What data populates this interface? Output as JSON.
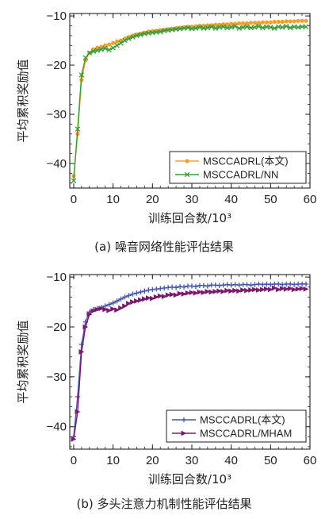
{
  "chart_data": [
    {
      "id": "a",
      "type": "line",
      "caption": "(a)  噪音网络性能评估结果",
      "xlabel": "训练回合数/10³",
      "ylabel": "平均累积奖励值",
      "xlim": [
        -1,
        60
      ],
      "ylim": [
        -45,
        -9.5
      ],
      "xticks": [
        0,
        10,
        20,
        30,
        40,
        50,
        60
      ],
      "yticks": [
        -40,
        -30,
        -20,
        -10
      ],
      "legend_position": "bottom-right",
      "series": [
        {
          "name": "MSCCADRL(本文)",
          "color": "#f4a12c",
          "marker": "dot",
          "x": [
            0,
            1,
            2,
            3,
            4,
            5,
            6,
            7,
            8,
            9,
            10,
            11,
            12,
            13,
            14,
            15,
            16,
            17,
            18,
            19,
            20,
            21,
            22,
            23,
            24,
            25,
            26,
            27,
            28,
            29,
            30,
            31,
            32,
            33,
            34,
            35,
            36,
            37,
            38,
            39,
            40,
            41,
            42,
            43,
            44,
            45,
            46,
            47,
            48,
            49,
            50,
            51,
            52,
            53,
            54,
            55,
            56,
            57,
            58,
            59
          ],
          "y": [
            -42.5,
            -34,
            -23,
            -19,
            -17.5,
            -16.8,
            -16.5,
            -16.3,
            -16,
            -15.8,
            -15.5,
            -15.2,
            -15,
            -14.6,
            -14.3,
            -14,
            -13.8,
            -13.6,
            -13.4,
            -13.2,
            -13.1,
            -13,
            -12.9,
            -12.8,
            -12.7,
            -12.6,
            -12.5,
            -12.4,
            -12.3,
            -12.2,
            -12.2,
            -12.1,
            -12,
            -12,
            -11.9,
            -11.9,
            -11.8,
            -11.8,
            -11.7,
            -11.7,
            -11.6,
            -11.6,
            -11.5,
            -11.5,
            -11.5,
            -11.4,
            -11.4,
            -11.4,
            -11.3,
            -11.3,
            -11.3,
            -11.2,
            -11.2,
            -11.2,
            -11.1,
            -11.1,
            -11.1,
            -11,
            -11,
            -11
          ]
        },
        {
          "name": "MSCCADRL/NN",
          "color": "#3a9a3a",
          "marker": "x",
          "x": [
            0,
            1,
            2,
            3,
            4,
            5,
            6,
            7,
            8,
            9,
            10,
            11,
            12,
            13,
            14,
            15,
            16,
            17,
            18,
            19,
            20,
            21,
            22,
            23,
            24,
            25,
            26,
            27,
            28,
            29,
            30,
            31,
            32,
            33,
            34,
            35,
            36,
            37,
            38,
            39,
            40,
            41,
            42,
            43,
            44,
            45,
            46,
            47,
            48,
            49,
            50,
            51,
            52,
            53,
            54,
            55,
            56,
            57,
            58,
            59
          ],
          "y": [
            -43.5,
            -33,
            -22,
            -18.5,
            -17.5,
            -17.2,
            -17,
            -16.8,
            -16.6,
            -16.9,
            -16.5,
            -16,
            -15.5,
            -15,
            -14.6,
            -14.3,
            -14,
            -13.8,
            -13.6,
            -13.5,
            -13.4,
            -13.3,
            -13.2,
            -13,
            -12.9,
            -12.8,
            -12.7,
            -12.6,
            -12.5,
            -12.4,
            -12.6,
            -12.5,
            -12.3,
            -12.5,
            -12.4,
            -12.2,
            -12.5,
            -12.3,
            -12.2,
            -12.4,
            -12.3,
            -12.1,
            -12.5,
            -12.3,
            -12.2,
            -12.4,
            -12.3,
            -12.1,
            -12.4,
            -12.2,
            -12.3,
            -12.5,
            -12.2,
            -12.3,
            -12.1,
            -12.4,
            -12.2,
            -12.3,
            -12.2,
            -12.2
          ]
        }
      ]
    },
    {
      "id": "b",
      "type": "line",
      "caption": "(b)  多头注意力机制性能评估结果",
      "xlabel": "训练回合数/10³",
      "ylabel": "平均累积奖励值",
      "xlim": [
        -1,
        60
      ],
      "ylim": [
        -44.5,
        -9.5
      ],
      "xticks": [
        0,
        10,
        20,
        30,
        40,
        50,
        60
      ],
      "yticks": [
        -40,
        -30,
        -20,
        -10
      ],
      "legend_position": "bottom-right",
      "series": [
        {
          "name": "MSCCADRL(本文)",
          "color": "#4557a8",
          "marker": "plus",
          "x": [
            0,
            1,
            2,
            3,
            4,
            5,
            6,
            7,
            8,
            9,
            10,
            11,
            12,
            13,
            14,
            15,
            16,
            17,
            18,
            19,
            20,
            21,
            22,
            23,
            24,
            25,
            26,
            27,
            28,
            29,
            30,
            31,
            32,
            33,
            34,
            35,
            36,
            37,
            38,
            39,
            40,
            41,
            42,
            43,
            44,
            45,
            46,
            47,
            48,
            49,
            50,
            51,
            52,
            53,
            54,
            55,
            56,
            57,
            58,
            59
          ],
          "y": [
            -42,
            -34,
            -23.5,
            -19,
            -17,
            -16.5,
            -16.3,
            -16.1,
            -15.8,
            -15.5,
            -15.2,
            -14.8,
            -14.4,
            -14,
            -13.7,
            -13.4,
            -13.2,
            -13,
            -12.8,
            -12.6,
            -12.5,
            -12.4,
            -12.3,
            -12.2,
            -12.1,
            -12,
            -12.1,
            -11.9,
            -12,
            -11.8,
            -11.8,
            -11.9,
            -11.7,
            -11.7,
            -11.8,
            -11.6,
            -11.6,
            -11.7,
            -11.6,
            -11.5,
            -11.6,
            -11.5,
            -11.6,
            -11.5,
            -11.5,
            -11.6,
            -11.5,
            -11.4,
            -11.5,
            -11.4,
            -11.5,
            -11.4,
            -11.4,
            -11.5,
            -11.4,
            -11.4,
            -11.5,
            -11.4,
            -11.4,
            -11.4
          ]
        },
        {
          "name": "MSCCADRL/MHAM",
          "color": "#7a1a6e",
          "marker": "triangle",
          "x": [
            0,
            1,
            2,
            3,
            4,
            5,
            6,
            7,
            8,
            9,
            10,
            11,
            12,
            13,
            14,
            15,
            16,
            17,
            18,
            19,
            20,
            21,
            22,
            23,
            24,
            25,
            26,
            27,
            28,
            29,
            30,
            31,
            32,
            33,
            34,
            35,
            36,
            37,
            38,
            39,
            40,
            41,
            42,
            43,
            44,
            45,
            46,
            47,
            48,
            49,
            50,
            51,
            52,
            53,
            54,
            55,
            56,
            57,
            58,
            59
          ],
          "y": [
            -42.5,
            -37,
            -25,
            -20,
            -17.5,
            -16.8,
            -16.5,
            -16.3,
            -16.5,
            -16.7,
            -16.4,
            -16.6,
            -16.2,
            -15.8,
            -15.3,
            -15,
            -14.8,
            -14.6,
            -14.4,
            -14.2,
            -14.3,
            -14,
            -13.8,
            -13.9,
            -13.6,
            -13.5,
            -13.6,
            -13.3,
            -13.4,
            -13.2,
            -13.1,
            -13.2,
            -13,
            -13.1,
            -12.9,
            -13,
            -12.9,
            -12.8,
            -12.9,
            -12.7,
            -12.8,
            -12.7,
            -12.8,
            -12.6,
            -12.7,
            -12.6,
            -12.5,
            -12.6,
            -12.5,
            -12.4,
            -12.5,
            -12.2,
            -12.5,
            -12.3,
            -12.4,
            -12.3,
            -12.5,
            -12.4,
            -12.3,
            -12.4
          ]
        }
      ]
    }
  ]
}
